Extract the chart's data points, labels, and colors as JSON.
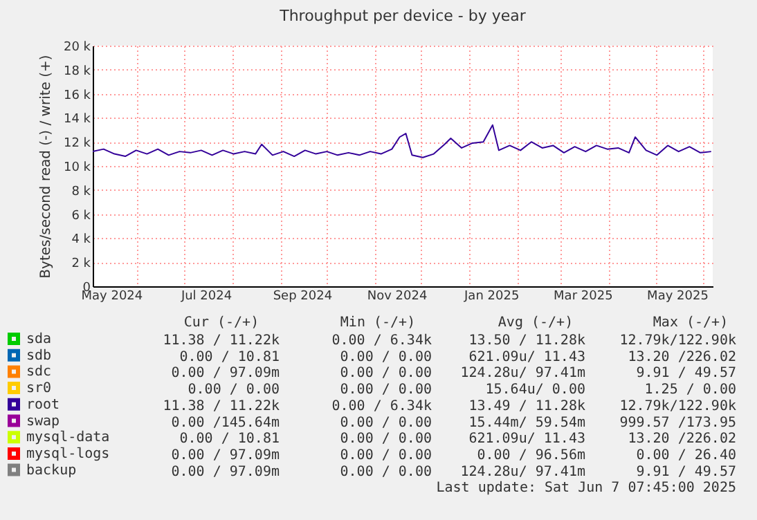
{
  "chart_data": {
    "type": "line",
    "title": "Throughput per device - by year",
    "ylabel": "Bytes/second read (-) / write (+)",
    "x": [
      "2024-05-03",
      "2024-05-10",
      "2024-05-17",
      "2024-05-24",
      "2024-05-31",
      "2024-06-07",
      "2024-06-14",
      "2024-06-21",
      "2024-06-28",
      "2024-07-05",
      "2024-07-12",
      "2024-07-19",
      "2024-07-26",
      "2024-08-02",
      "2024-08-09",
      "2024-08-16",
      "2024-08-20",
      "2024-08-27",
      "2024-09-03",
      "2024-09-10",
      "2024-09-17",
      "2024-09-24",
      "2024-10-01",
      "2024-10-08",
      "2024-10-15",
      "2024-10-22",
      "2024-10-29",
      "2024-11-05",
      "2024-11-12",
      "2024-11-17",
      "2024-11-21",
      "2024-11-25",
      "2024-12-02",
      "2024-12-09",
      "2024-12-16",
      "2024-12-20",
      "2024-12-27",
      "2025-01-03",
      "2025-01-10",
      "2025-01-16",
      "2025-01-20",
      "2025-01-27",
      "2025-02-03",
      "2025-02-10",
      "2025-02-17",
      "2025-02-24",
      "2025-03-03",
      "2025-03-10",
      "2025-03-17",
      "2025-03-24",
      "2025-03-31",
      "2025-04-07",
      "2025-04-14",
      "2025-04-18",
      "2025-04-25",
      "2025-05-02",
      "2025-05-09",
      "2025-05-16",
      "2025-05-23",
      "2025-05-30",
      "2025-06-06"
    ],
    "series": [
      {
        "name": "sda",
        "color": "#00cc00",
        "values": [
          null,
          null,
          null,
          null,
          null,
          null,
          null,
          null,
          null,
          null,
          null,
          null,
          null,
          null,
          null,
          null,
          null,
          null,
          null,
          null,
          null,
          null,
          null,
          null,
          null,
          null,
          null,
          null,
          null,
          null,
          null,
          null,
          null,
          null,
          null,
          null,
          null,
          null,
          null,
          null,
          null,
          null,
          null,
          null,
          null,
          null,
          null,
          null,
          null,
          null,
          null,
          null,
          null,
          null,
          null,
          null,
          null,
          null,
          null,
          null,
          null
        ]
      },
      {
        "name": "sdb",
        "color": "#0066b3",
        "values": [
          null,
          null,
          null,
          null,
          null,
          null,
          null,
          null,
          null,
          null,
          null,
          null,
          null,
          null,
          null,
          null,
          null,
          null,
          null,
          null,
          null,
          null,
          null,
          null,
          null,
          null,
          null,
          null,
          null,
          null,
          null,
          null,
          null,
          null,
          null,
          null,
          null,
          null,
          null,
          null,
          null,
          null,
          null,
          null,
          null,
          null,
          null,
          null,
          null,
          null,
          null,
          null,
          null,
          null,
          null,
          null,
          null,
          null,
          null,
          null,
          null
        ]
      },
      {
        "name": "sdc",
        "color": "#ff8000",
        "values": [
          null,
          null,
          null,
          null,
          null,
          null,
          null,
          null,
          null,
          null,
          null,
          null,
          null,
          null,
          null,
          null,
          null,
          null,
          null,
          null,
          null,
          null,
          null,
          null,
          null,
          null,
          null,
          null,
          null,
          null,
          null,
          null,
          null,
          null,
          null,
          null,
          null,
          null,
          null,
          null,
          null,
          null,
          null,
          null,
          null,
          null,
          null,
          null,
          null,
          null,
          null,
          null,
          null,
          null,
          null,
          null,
          null,
          null,
          null,
          null,
          null
        ]
      },
      {
        "name": "sr0",
        "color": "#ffcc00",
        "values": [
          null,
          null,
          null,
          null,
          null,
          null,
          null,
          null,
          null,
          null,
          null,
          null,
          null,
          null,
          null,
          null,
          null,
          null,
          null,
          null,
          null,
          null,
          null,
          null,
          null,
          null,
          null,
          null,
          null,
          null,
          null,
          null,
          null,
          null,
          null,
          null,
          null,
          null,
          null,
          null,
          null,
          null,
          null,
          null,
          null,
          null,
          null,
          null,
          null,
          null,
          null,
          null,
          null,
          null,
          null,
          null,
          null,
          null,
          null,
          null,
          null
        ]
      },
      {
        "name": "root",
        "color": "#330099",
        "values": [
          11200,
          11400,
          11000,
          10800,
          11300,
          11000,
          11400,
          10900,
          11200,
          11100,
          11300,
          10900,
          11300,
          11000,
          11200,
          11000,
          11800,
          10900,
          11200,
          10800,
          11300,
          11000,
          11200,
          10900,
          11100,
          10900,
          11200,
          11000,
          11400,
          12400,
          12700,
          10900,
          10700,
          11000,
          11800,
          12300,
          11500,
          11900,
          12000,
          13400,
          11300,
          11700,
          11300,
          12000,
          11500,
          11700,
          11100,
          11600,
          11200,
          11700,
          11400,
          11500,
          11100,
          12400,
          11300,
          10900,
          11700,
          11200,
          11600,
          11100,
          11200
        ]
      },
      {
        "name": "swap",
        "color": "#990099",
        "values": [
          null,
          null,
          null,
          null,
          null,
          null,
          null,
          null,
          null,
          null,
          null,
          null,
          null,
          null,
          null,
          null,
          null,
          null,
          null,
          null,
          null,
          null,
          null,
          null,
          null,
          null,
          null,
          null,
          null,
          null,
          null,
          null,
          null,
          null,
          null,
          null,
          null,
          null,
          null,
          null,
          null,
          null,
          null,
          null,
          null,
          null,
          null,
          null,
          null,
          null,
          null,
          null,
          null,
          null,
          null,
          null,
          null,
          null,
          null,
          null,
          null
        ]
      },
      {
        "name": "mysql-data",
        "color": "#ccff00",
        "values": [
          null,
          null,
          null,
          null,
          null,
          null,
          null,
          null,
          null,
          null,
          null,
          null,
          null,
          null,
          null,
          null,
          null,
          null,
          null,
          null,
          null,
          null,
          null,
          null,
          null,
          null,
          null,
          null,
          null,
          null,
          null,
          null,
          null,
          null,
          null,
          null,
          null,
          null,
          null,
          null,
          null,
          null,
          null,
          null,
          null,
          null,
          null,
          null,
          null,
          null,
          null,
          null,
          null,
          null,
          null,
          null,
          null,
          null,
          null,
          null,
          null
        ]
      },
      {
        "name": "mysql-logs",
        "color": "#ff0000",
        "values": [
          null,
          null,
          null,
          null,
          null,
          null,
          null,
          null,
          null,
          null,
          null,
          null,
          null,
          null,
          null,
          null,
          null,
          null,
          null,
          null,
          null,
          null,
          null,
          null,
          null,
          null,
          null,
          null,
          null,
          null,
          null,
          null,
          null,
          null,
          null,
          null,
          null,
          null,
          null,
          null,
          null,
          null,
          null,
          null,
          null,
          null,
          null,
          null,
          null,
          null,
          null,
          null,
          null,
          null,
          null,
          null,
          null,
          null,
          null,
          null,
          null
        ]
      },
      {
        "name": "backup",
        "color": "#808080",
        "values": [
          null,
          null,
          null,
          null,
          null,
          null,
          null,
          null,
          null,
          null,
          null,
          null,
          null,
          null,
          null,
          null,
          null,
          null,
          null,
          null,
          null,
          null,
          null,
          null,
          null,
          null,
          null,
          null,
          null,
          null,
          null,
          null,
          null,
          null,
          null,
          null,
          null,
          null,
          null,
          null,
          null,
          null,
          null,
          null,
          null,
          null,
          null,
          null,
          null,
          null,
          null,
          null,
          null,
          null,
          null,
          null,
          null,
          null,
          null,
          null,
          null
        ]
      }
    ],
    "xlim": [
      "2024-05-03",
      "2025-06-07"
    ],
    "xticks": [
      {
        "value": "2024-05-15",
        "label": "May 2024"
      },
      {
        "value": "2024-06-01",
        "label": null
      },
      {
        "value": "2024-07-01",
        "label": null
      },
      {
        "value": "2024-07-15",
        "label": "Jul 2024"
      },
      {
        "value": "2024-08-01",
        "label": null
      },
      {
        "value": "2024-09-01",
        "label": null
      },
      {
        "value": "2024-09-15",
        "label": "Sep 2024"
      },
      {
        "value": "2024-10-01",
        "label": null
      },
      {
        "value": "2024-11-01",
        "label": null
      },
      {
        "value": "2024-11-15",
        "label": "Nov 2024"
      },
      {
        "value": "2024-12-01",
        "label": null
      },
      {
        "value": "2025-01-01",
        "label": null
      },
      {
        "value": "2025-01-15",
        "label": "Jan 2025"
      },
      {
        "value": "2025-02-01",
        "label": null
      },
      {
        "value": "2025-03-01",
        "label": null
      },
      {
        "value": "2025-03-15",
        "label": "Mar 2025"
      },
      {
        "value": "2025-04-01",
        "label": null
      },
      {
        "value": "2025-05-01",
        "label": null
      },
      {
        "value": "2025-05-15",
        "label": "May 2025"
      },
      {
        "value": "2025-06-01",
        "label": null
      }
    ],
    "ylim": [
      0,
      20000
    ],
    "yticks": [
      {
        "value": 0,
        "label": "0"
      },
      {
        "value": 2000,
        "label": "2 k"
      },
      {
        "value": 4000,
        "label": "4 k"
      },
      {
        "value": 6000,
        "label": "6 k"
      },
      {
        "value": 8000,
        "label": "8 k"
      },
      {
        "value": 10000,
        "label": "10 k"
      },
      {
        "value": 12000,
        "label": "12 k"
      },
      {
        "value": 14000,
        "label": "14 k"
      },
      {
        "value": 16000,
        "label": "16 k"
      },
      {
        "value": 18000,
        "label": "18 k"
      },
      {
        "value": 20000,
        "label": "20 k"
      }
    ],
    "grid": true,
    "legend": "bottom left",
    "line_style": "solid",
    "annotations": [
      "Cur (-/+)",
      "Min (-/+)",
      "Avg (-/+)",
      "Max (-/+)",
      "11.38 / 11.22k",
      "0.00 /   6.34k",
      "13.50 / 11.28k",
      "12.79k/122.90k",
      "0.00 / 10.81",
      "0.00 /   0.00",
      "621.09u/ 11.43",
      "13.20 /226.02",
      "0.00 / 97.09m",
      "0.00 /   0.00",
      "124.28u/ 97.41m",
      "9.91 /  49.57",
      "0.00 /  0.00",
      "0.00 /   0.00",
      "15.64u/  0.00",
      "1.25 /   0.00",
      "11.38 / 11.22k",
      "0.00 /   6.34k",
      "13.49 / 11.28k",
      "12.79k/122.90k",
      "0.00 /145.64m",
      "0.00 /   0.00",
      "15.44m/ 59.54m",
      "999.57 /173.95",
      "0.00 / 10.81",
      "0.00 /   0.00",
      "621.09u/ 11.43",
      "13.20 /226.02",
      "0.00 / 97.09m",
      "0.00 /   0.00",
      "0.00 / 96.56m",
      "0.00 /  26.40",
      "0.00 / 97.09m",
      "0.00 /   0.00",
      "124.28u/ 97.41m",
      "9.91 /  49.57",
      "Last update: Sat Jun  7 07:45:00 2025"
    ]
  }
}
